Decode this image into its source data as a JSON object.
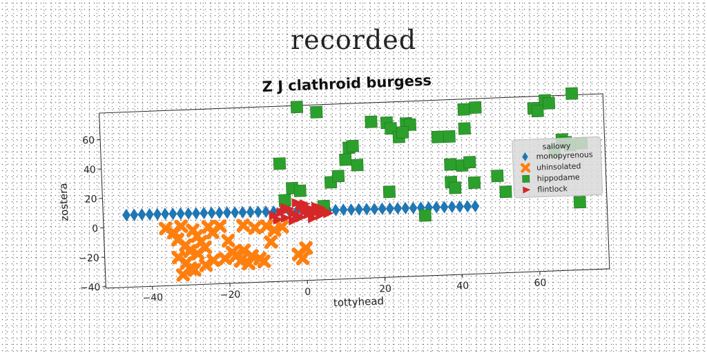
{
  "supertitle": "recorded",
  "chart_data": {
    "type": "scatter",
    "title": "Z J clathroid burgess",
    "xlabel": "tottyhead",
    "ylabel": "zostera",
    "xlim": [
      -52,
      78
    ],
    "ylim": [
      -41,
      78
    ],
    "xticks": [
      -40,
      -20,
      0,
      20,
      40,
      60
    ],
    "yticks": [
      -40,
      -20,
      0,
      20,
      40,
      60
    ],
    "tick_labels_x": [
      "−40",
      "−20",
      "0",
      "20",
      "40",
      "60"
    ],
    "tick_labels_y": [
      "−40",
      "−20",
      "0",
      "20",
      "40",
      "60"
    ],
    "grid": false,
    "legend": {
      "title": "sallowy",
      "placement": "right"
    },
    "series": [
      {
        "name": "monopyrenous",
        "marker": "diamond",
        "color": "#1f77b4",
        "points": [
          [
            -46,
            8
          ],
          [
            -44,
            8
          ],
          [
            -42,
            8
          ],
          [
            -40,
            7.9
          ],
          [
            -38,
            7.8
          ],
          [
            -36,
            7.8
          ],
          [
            -34,
            7.7
          ],
          [
            -32,
            7.6
          ],
          [
            -30,
            7.5
          ],
          [
            -28,
            7.4
          ],
          [
            -26,
            7.4
          ],
          [
            -24,
            7.3
          ],
          [
            -22,
            7.2
          ],
          [
            -20,
            7.1
          ],
          [
            -18,
            7
          ],
          [
            -16,
            6.9
          ],
          [
            -14,
            6.9
          ],
          [
            -12,
            6.8
          ],
          [
            -10,
            6.7
          ],
          [
            -8,
            6.6
          ],
          [
            -6,
            6.5
          ],
          [
            -4,
            6.5
          ],
          [
            -2,
            6.4
          ],
          [
            0,
            6.3
          ],
          [
            2,
            6.2
          ],
          [
            4,
            6.2
          ],
          [
            6,
            6.1
          ],
          [
            8,
            6
          ],
          [
            10,
            6
          ],
          [
            12,
            5.9
          ],
          [
            14,
            5.9
          ],
          [
            16,
            5.8
          ],
          [
            18,
            5.7
          ],
          [
            20,
            5.7
          ],
          [
            22,
            5.6
          ],
          [
            24,
            5.6
          ],
          [
            26,
            5.5
          ],
          [
            28,
            5.4
          ],
          [
            30,
            5.4
          ],
          [
            32,
            5.3
          ],
          [
            34,
            5.3
          ],
          [
            36,
            5.2
          ],
          [
            38,
            5.2
          ],
          [
            40,
            5.1
          ],
          [
            42,
            5.1
          ],
          [
            44,
            5
          ]
        ]
      },
      {
        "name": "uhinsolated",
        "marker": "x",
        "color": "#ff7f0e",
        "points": [
          [
            -36,
            -2
          ],
          [
            -34,
            -5
          ],
          [
            -33,
            -10
          ],
          [
            -32,
            -1
          ],
          [
            -31,
            -14
          ],
          [
            -30,
            -18
          ],
          [
            -29,
            -4
          ],
          [
            -28,
            -8
          ],
          [
            -27,
            -12
          ],
          [
            -26,
            -16
          ],
          [
            -25,
            -2
          ],
          [
            -24,
            -6
          ],
          [
            -33,
            -22
          ],
          [
            -31,
            -26
          ],
          [
            -30,
            -30
          ],
          [
            -28,
            -20
          ],
          [
            -26,
            -28
          ],
          [
            -24,
            -25
          ],
          [
            -32,
            -34
          ],
          [
            -29,
            -31
          ],
          [
            -22,
            -2
          ],
          [
            -20,
            -12
          ],
          [
            -18,
            -22
          ],
          [
            -17,
            -26
          ],
          [
            -16,
            -19
          ],
          [
            -15,
            -28
          ],
          [
            -14,
            -23
          ],
          [
            -12,
            -25
          ],
          [
            -11,
            -27
          ],
          [
            -19,
            -20
          ],
          [
            -13,
            -4
          ],
          [
            -16,
            -2
          ],
          [
            -10,
            -3
          ],
          [
            -8,
            -6
          ],
          [
            -6,
            -4
          ],
          [
            -2,
            -23
          ],
          [
            -1,
            -26
          ],
          [
            0,
            -19
          ],
          [
            -9,
            -14
          ],
          [
            -21,
            -24
          ]
        ]
      },
      {
        "name": "hippodame",
        "marker": "square",
        "color": "#2ca02c",
        "points": [
          [
            -1,
            77
          ],
          [
            4,
            73
          ],
          [
            12,
            48
          ],
          [
            11,
            40
          ],
          [
            14,
            36
          ],
          [
            13,
            49
          ],
          [
            18,
            65
          ],
          [
            22,
            64
          ],
          [
            23,
            60
          ],
          [
            25,
            54
          ],
          [
            27,
            63
          ],
          [
            28,
            62
          ],
          [
            26,
            57
          ],
          [
            35,
            53
          ],
          [
            38,
            53
          ],
          [
            42,
            58
          ],
          [
            42,
            71
          ],
          [
            45,
            72
          ],
          [
            38,
            34
          ],
          [
            41,
            33
          ],
          [
            43,
            35
          ],
          [
            38,
            22
          ],
          [
            39,
            18
          ],
          [
            44,
            21
          ],
          [
            50,
            25
          ],
          [
            52,
            14
          ],
          [
            63,
            75
          ],
          [
            64,
            73
          ],
          [
            65,
            40
          ],
          [
            67,
            48
          ],
          [
            68,
            46
          ],
          [
            69,
            44
          ],
          [
            70,
            79
          ],
          [
            71,
            5
          ],
          [
            -6,
            39
          ],
          [
            -3,
            22
          ],
          [
            -1,
            20
          ],
          [
            5,
            9
          ],
          [
            7,
            25
          ],
          [
            9,
            29
          ],
          [
            22,
            17
          ],
          [
            31,
            0
          ],
          [
            72,
            45
          ],
          [
            60,
            70
          ],
          [
            61,
            68
          ],
          [
            -5,
            14
          ]
        ]
      },
      {
        "name": "flintlock",
        "marker": "triangle-right",
        "color": "#d62728",
        "points": [
          [
            -8,
            4
          ],
          [
            -6,
            6
          ],
          [
            -5,
            2
          ],
          [
            -4,
            8
          ],
          [
            -3,
            5
          ],
          [
            -2,
            3
          ],
          [
            -1,
            9
          ],
          [
            0,
            6
          ],
          [
            1,
            4
          ],
          [
            2,
            7
          ],
          [
            3,
            5
          ],
          [
            4,
            3
          ],
          [
            5,
            6
          ],
          [
            -7,
            1
          ],
          [
            -5,
            9
          ],
          [
            -3,
            0
          ],
          [
            -1,
            2
          ],
          [
            0,
            11
          ],
          [
            1,
            8
          ],
          [
            3,
            9
          ],
          [
            -2,
            12
          ],
          [
            2,
            1
          ],
          [
            4,
            8
          ],
          [
            6,
            4
          ]
        ]
      }
    ]
  }
}
